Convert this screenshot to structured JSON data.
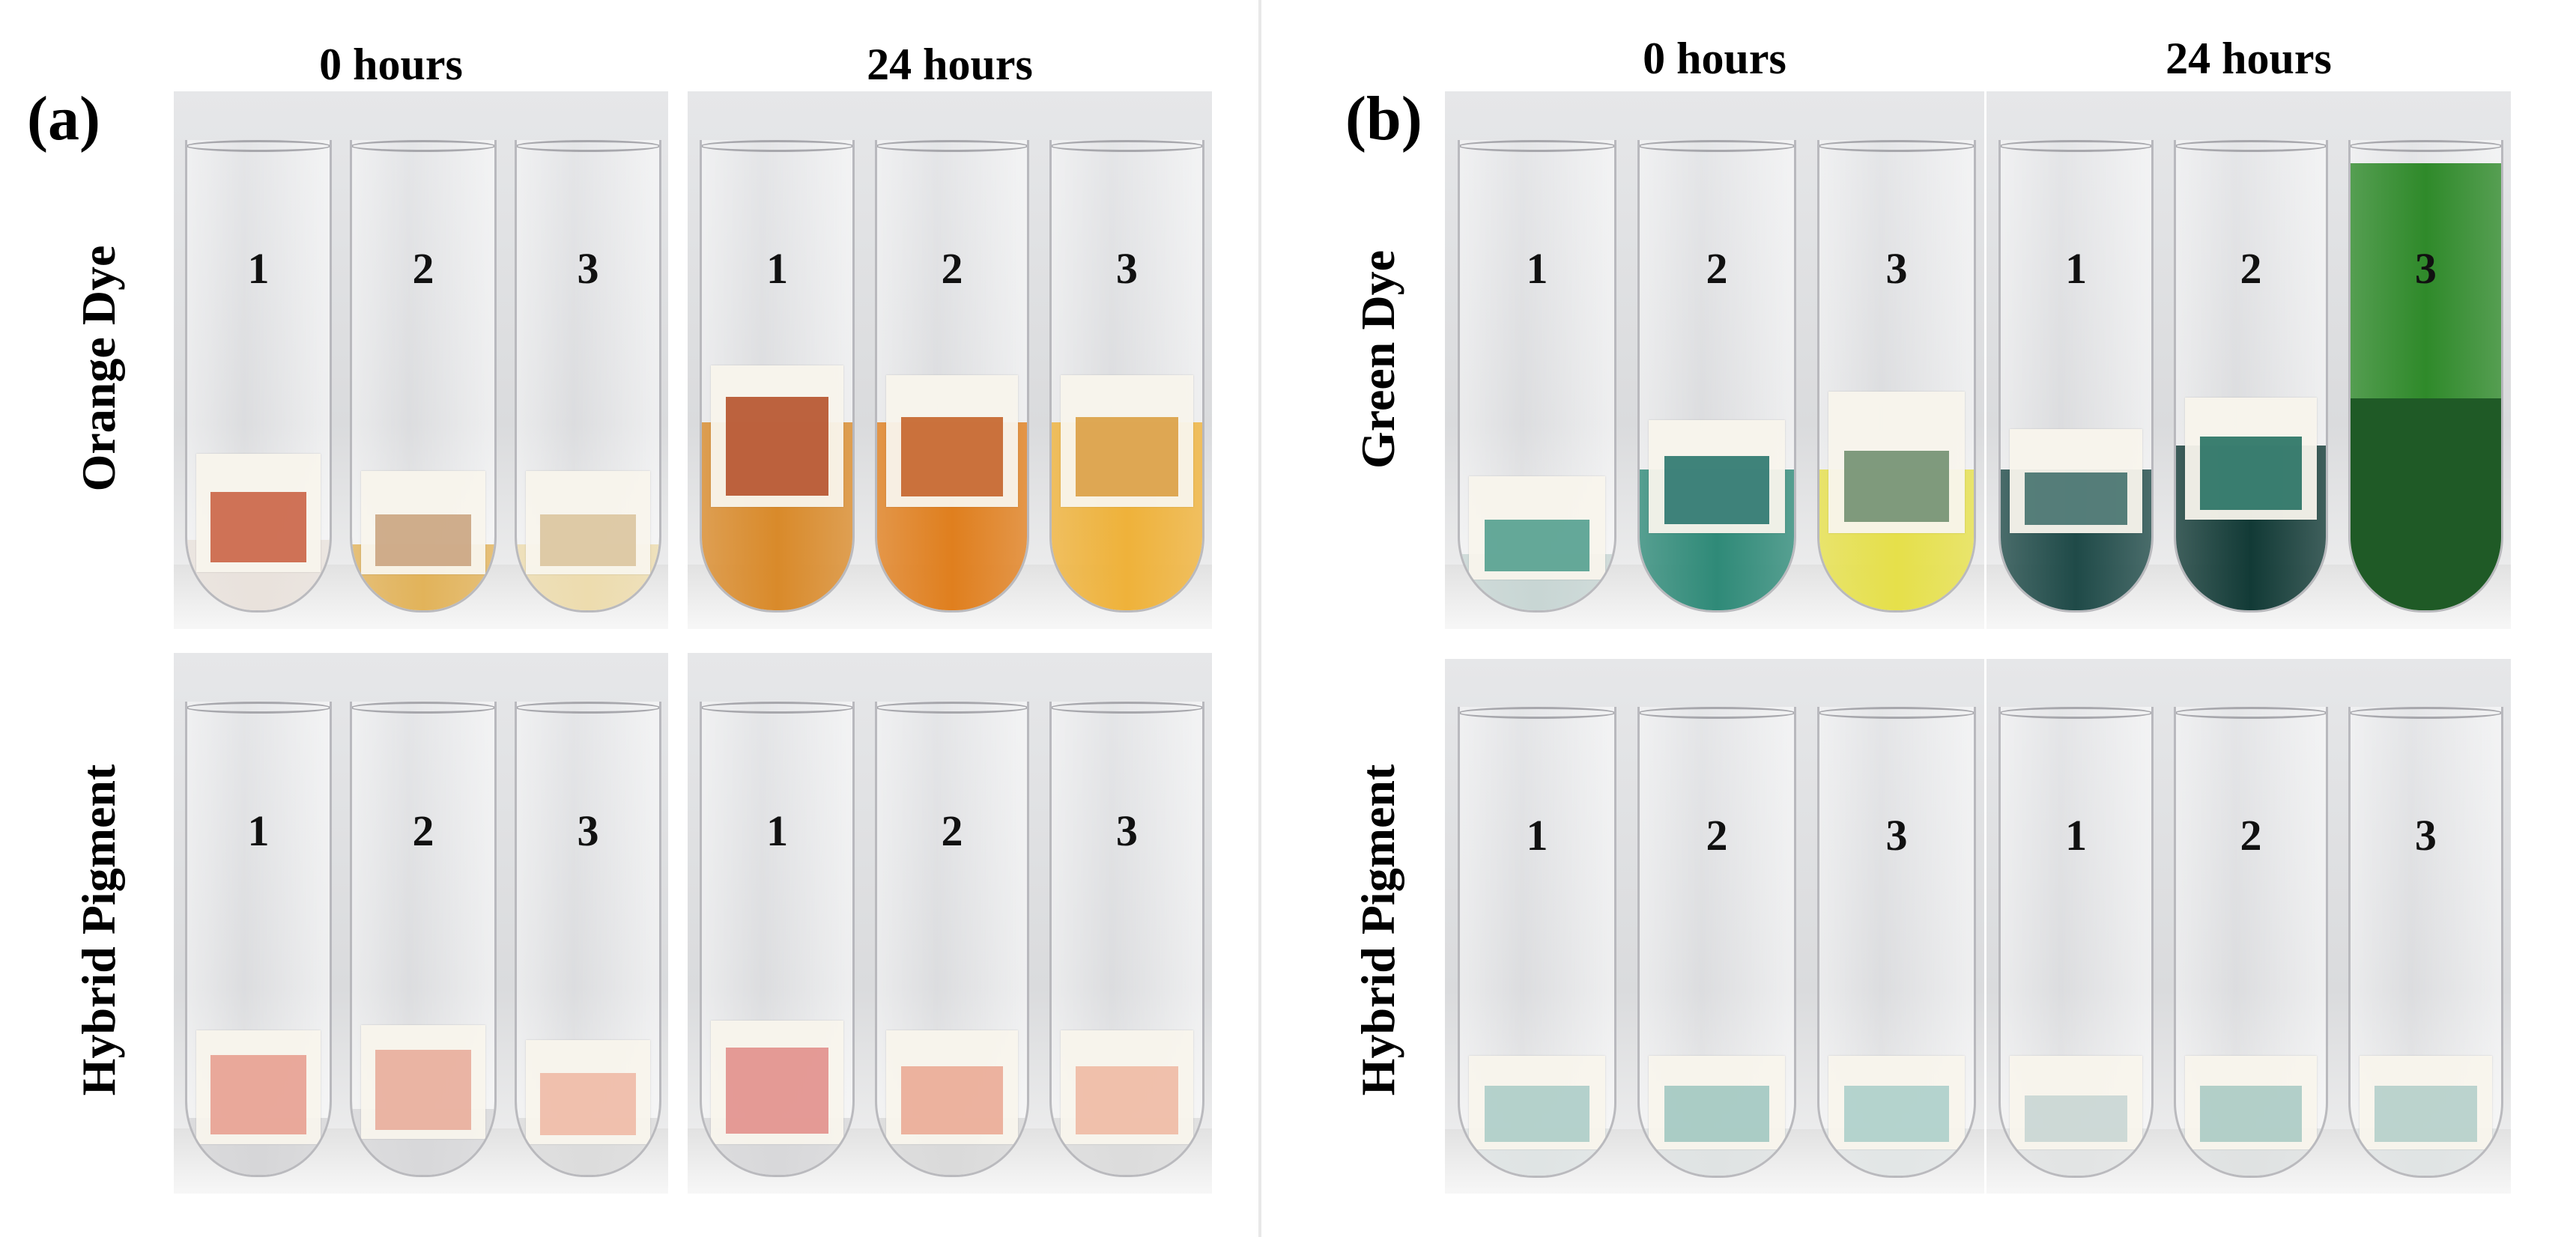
{
  "panels": [
    {
      "label": "(a)",
      "columns": [
        "0 hours",
        "24 hours"
      ],
      "rows": [
        {
          "label": "Orange Dye",
          "photos": [
            {
              "tubes": [
                {
                  "num": "1",
                  "liquid": "#e9e2dc",
                  "fill": 0.15,
                  "paper": 0.25,
                  "stain": "#c85a3c",
                  "stainLevel": 0.6
                },
                {
                  "num": "2",
                  "liquid": "#e2b35a",
                  "fill": 0.14,
                  "paper": 0.22,
                  "stain": "#c8a07a",
                  "stainLevel": 0.5
                },
                {
                  "num": "3",
                  "liquid": "#eddcae",
                  "fill": 0.14,
                  "paper": 0.22,
                  "stain": "#d9c29a",
                  "stainLevel": 0.5
                }
              ]
            },
            {
              "tubes": [
                {
                  "num": "1",
                  "liquid": "#d98a2a",
                  "fill": 0.4,
                  "paper": 0.3,
                  "stain": "#b24820",
                  "stainLevel": 0.7
                },
                {
                  "num": "2",
                  "liquid": "#e07f1e",
                  "fill": 0.4,
                  "paper": 0.28,
                  "stain": "#c25a1e",
                  "stainLevel": 0.6
                },
                {
                  "num": "3",
                  "liquid": "#efb23a",
                  "fill": 0.4,
                  "paper": 0.28,
                  "stain": "#d99a3a",
                  "stainLevel": 0.6
                }
              ]
            }
          ]
        },
        {
          "label": "Hybrid Pigment",
          "photos": [
            {
              "tubes": [
                {
                  "num": "1",
                  "liquid": "#d6d6d8",
                  "fill": 0.12,
                  "paper": 0.24,
                  "stain": "#e69a8c",
                  "stainLevel": 0.7
                },
                {
                  "num": "2",
                  "liquid": "#d8d8da",
                  "fill": 0.14,
                  "paper": 0.24,
                  "stain": "#e8a896",
                  "stainLevel": 0.7
                },
                {
                  "num": "3",
                  "liquid": "#dcdcdc",
                  "fill": 0.12,
                  "paper": 0.22,
                  "stain": "#efb6a2",
                  "stainLevel": 0.6
                }
              ]
            },
            {
              "tubes": [
                {
                  "num": "1",
                  "liquid": "#d8d8da",
                  "fill": 0.12,
                  "paper": 0.26,
                  "stain": "#e08a86",
                  "stainLevel": 0.7
                },
                {
                  "num": "2",
                  "liquid": "#dadada",
                  "fill": 0.12,
                  "paper": 0.24,
                  "stain": "#eaa690",
                  "stainLevel": 0.6
                },
                {
                  "num": "3",
                  "liquid": "#dcdcdc",
                  "fill": 0.12,
                  "paper": 0.24,
                  "stain": "#efb6a0",
                  "stainLevel": 0.6
                }
              ]
            }
          ]
        }
      ]
    },
    {
      "label": "(b)",
      "columns": [
        "0 hours",
        "24 hours"
      ],
      "rows": [
        {
          "label": "Green Dye",
          "photos": [
            {
              "tubes": [
                {
                  "num": "1",
                  "liquid": "#c8d6d4",
                  "fill": 0.12,
                  "paper": 0.22,
                  "stain": "#4a9a8a",
                  "stainLevel": 0.5
                },
                {
                  "num": "2",
                  "liquid": "#2f8a78",
                  "fill": 0.3,
                  "paper": 0.24,
                  "stain": "#1e6f66",
                  "stainLevel": 0.6
                },
                {
                  "num": "3",
                  "liquid": "#e6e04a",
                  "fill": 0.3,
                  "paper": 0.3,
                  "stain": "#6a8a6a",
                  "stainLevel": 0.5
                }
              ]
            },
            {
              "tubes": [
                {
                  "num": "1",
                  "liquid": "#1f4a48",
                  "fill": 0.3,
                  "paper": 0.22,
                  "stain": "#3a6a66",
                  "stainLevel": 0.5
                },
                {
                  "num": "2",
                  "liquid": "#123a36",
                  "fill": 0.35,
                  "paper": 0.26,
                  "stain": "#1a6a5a",
                  "stainLevel": 0.6
                },
                {
                  "num": "3",
                  "liquid": "#2f8a2a",
                  "fill": 0.95,
                  "paper": 0.0,
                  "stain": "#1f5a26",
                  "stainLevel": 0.45
                }
              ]
            }
          ]
        },
        {
          "label": "Hybrid Pigment",
          "photos": [
            {
              "tubes": [
                {
                  "num": "1",
                  "liquid": "#dfe4e4",
                  "fill": 0.1,
                  "paper": 0.2,
                  "stain": "#a8cac6",
                  "stainLevel": 0.6
                },
                {
                  "num": "2",
                  "liquid": "#dfe3e3",
                  "fill": 0.1,
                  "paper": 0.2,
                  "stain": "#9cc4be",
                  "stainLevel": 0.6
                },
                {
                  "num": "3",
                  "liquid": "#e2e6e6",
                  "fill": 0.1,
                  "paper": 0.2,
                  "stain": "#a8ccc8",
                  "stainLevel": 0.6
                }
              ]
            },
            {
              "tubes": [
                {
                  "num": "1",
                  "liquid": "#e2e4e4",
                  "fill": 0.1,
                  "paper": 0.2,
                  "stain": "#c6d4d2",
                  "stainLevel": 0.5
                },
                {
                  "num": "2",
                  "liquid": "#dfe2e2",
                  "fill": 0.1,
                  "paper": 0.2,
                  "stain": "#a6c8c2",
                  "stainLevel": 0.6
                },
                {
                  "num": "3",
                  "liquid": "#e0e4e4",
                  "fill": 0.1,
                  "paper": 0.2,
                  "stain": "#b0ccc8",
                  "stainLevel": 0.6
                }
              ]
            }
          ]
        }
      ]
    }
  ]
}
